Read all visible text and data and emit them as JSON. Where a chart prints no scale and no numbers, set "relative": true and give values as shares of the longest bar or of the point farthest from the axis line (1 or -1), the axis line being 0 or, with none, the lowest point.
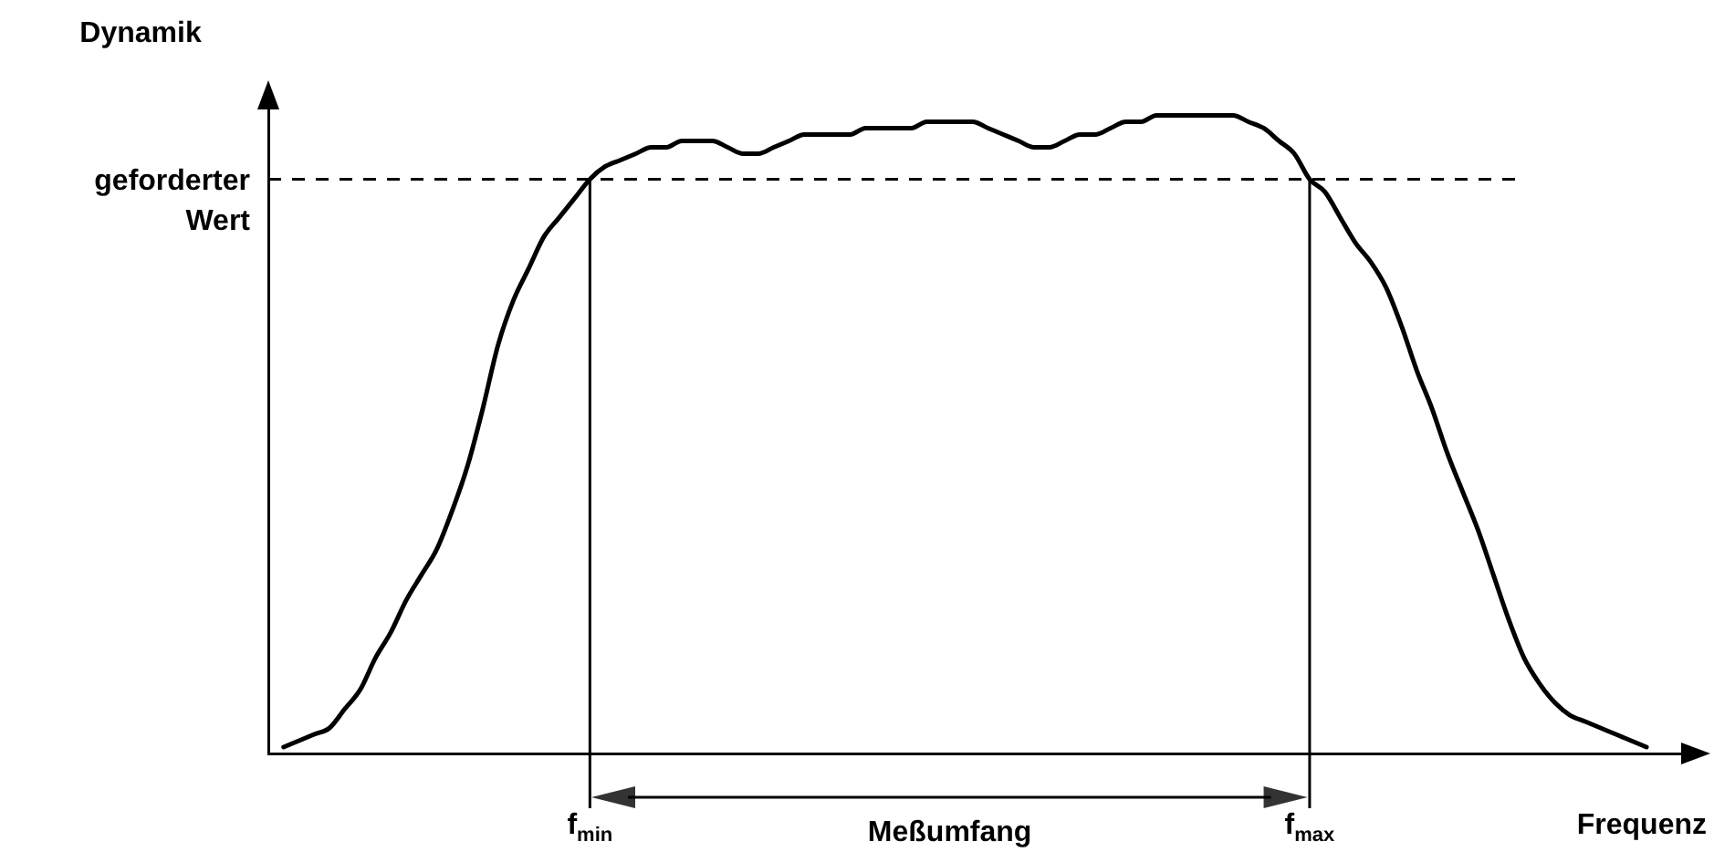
{
  "chart_data": {
    "type": "line",
    "relative": true,
    "ylabel": "Dynamik",
    "xlabel": "Frequenz",
    "marker": "none",
    "legend": false,
    "grid": false,
    "categories": [
      null,
      null,
      null,
      null,
      null,
      null,
      null,
      null,
      null,
      null,
      null,
      null,
      null,
      null,
      null,
      null,
      null,
      null,
      null,
      null,
      "f$_{min}$",
      null,
      null,
      null,
      null,
      null,
      null,
      null,
      null,
      null,
      null,
      null,
      null,
      null,
      null,
      null,
      null,
      null,
      null,
      null,
      null,
      null,
      null,
      null,
      null,
      null,
      null,
      null,
      null,
      null,
      null,
      null,
      null,
      null,
      null,
      null,
      null,
      null,
      null,
      null,
      null,
      null,
      null,
      null,
      null,
      null,
      null,
      "f$_{max}$",
      null,
      null,
      null,
      null,
      null,
      null,
      null,
      null,
      null,
      null,
      null,
      null,
      null,
      null,
      null,
      null,
      null,
      null,
      null,
      null,
      null,
      null
    ],
    "series": [
      {
        "color": "#000000",
        "values": [
          0.01,
          0.02,
          0.03,
          0.04,
          0.07,
          0.1,
          0.15,
          0.19,
          0.24,
          0.28,
          0.32,
          0.38,
          0.45,
          0.54,
          0.64,
          0.71,
          0.76,
          0.81,
          0.84,
          0.87,
          0.9,
          0.92,
          0.93,
          0.94,
          0.95,
          0.95,
          0.96,
          0.96,
          0.96,
          0.95,
          0.94,
          0.94,
          0.95,
          0.96,
          0.97,
          0.97,
          0.97,
          0.97,
          0.98,
          0.98,
          0.98,
          0.98,
          0.99,
          0.99,
          0.99,
          0.99,
          0.98,
          0.97,
          0.96,
          0.95,
          0.95,
          0.96,
          0.97,
          0.97,
          0.98,
          0.99,
          0.99,
          1.0,
          1.0,
          1.0,
          1.0,
          1.0,
          1.0,
          0.99,
          0.98,
          0.96,
          0.94,
          0.9,
          0.88,
          0.84,
          0.8,
          0.77,
          0.73,
          0.67,
          0.6,
          0.54,
          0.47,
          0.41,
          0.35,
          0.28,
          0.21,
          0.15,
          0.11,
          0.08,
          0.06,
          0.05,
          0.04,
          0.03,
          0.02,
          0.01
        ]
      }
    ],
    "ref_lines": [
      {
        "axis": "y",
        "value": 0.9,
        "label": "geforderter Wert",
        "line_style": "dashed"
      },
      {
        "axis": "x",
        "value": "f$_{min}$"
      },
      {
        "axis": "x",
        "value": "f$_{max}$"
      }
    ],
    "annotations": [
      "Meßumfang"
    ]
  }
}
